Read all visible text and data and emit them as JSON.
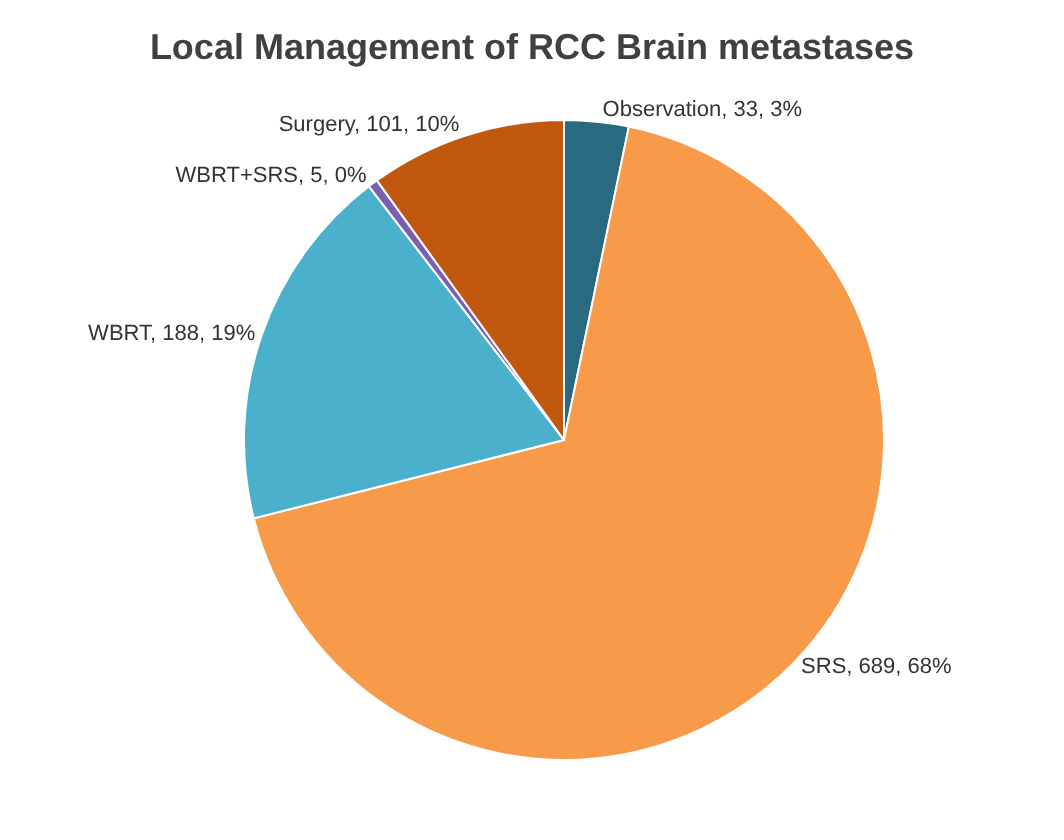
{
  "chart_data": {
    "type": "pie",
    "title": "Local Management of RCC Brain metastases",
    "categories": [
      "Observation, 33, 3%",
      "SRS, 689, 68%",
      "WBRT, 188, 19%",
      "WBRT+SRS, 5, 0%",
      "Surgery, 101, 10%"
    ],
    "values": [
      33,
      689,
      188,
      5,
      101
    ],
    "colors": [
      "#2a6a80",
      "#f79a4a",
      "#4ab0cc",
      "#7a5fb0",
      "#c0590f"
    ]
  }
}
